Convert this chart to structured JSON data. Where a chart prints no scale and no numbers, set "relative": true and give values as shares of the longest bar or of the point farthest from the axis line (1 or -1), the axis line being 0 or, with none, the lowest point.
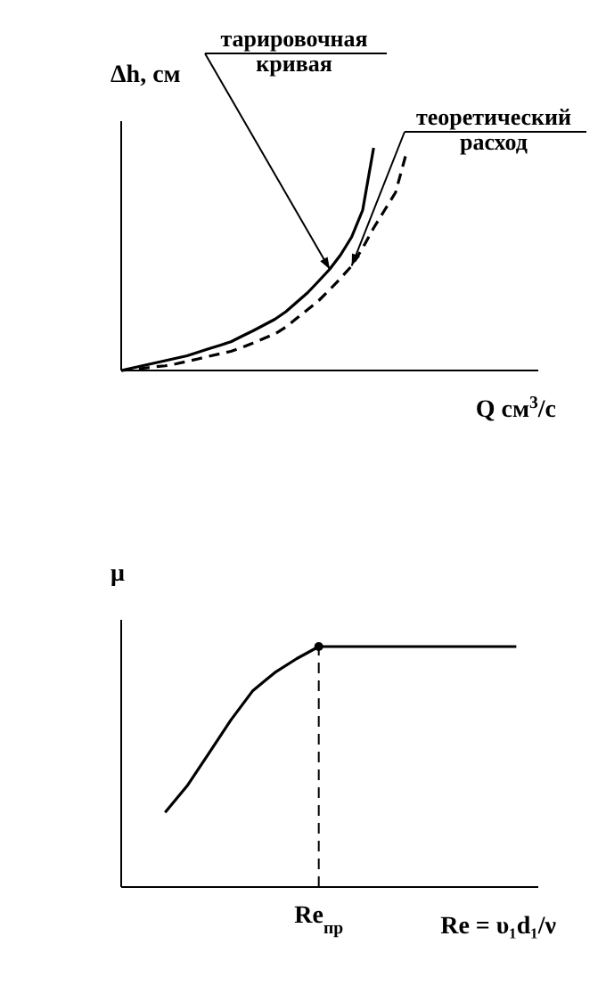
{
  "chart_data": [
    {
      "type": "line",
      "relative": true,
      "xlabel": "Q см$^{3}$/с",
      "ylabel": "Δh, см",
      "marker": "none",
      "categories": [
        null,
        null,
        null,
        null,
        null,
        null,
        null,
        null,
        null,
        null,
        null,
        null,
        null,
        null,
        null,
        null,
        null,
        null,
        null,
        null,
        null,
        null,
        null,
        null,
        null,
        null,
        null,
        null,
        null,
        null,
        null,
        null,
        null,
        null,
        null,
        null,
        null,
        null,
        null
      ],
      "series": [
        {
          "name": "тарировочная кривая",
          "color": "#000000",
          "line_style": "solid",
          "values": [
            0,
            0.011,
            0.022,
            0.033,
            0.044,
            0.055,
            0.066,
            0.082,
            0.098,
            0.113,
            0.129,
            0.154,
            0.178,
            0.204,
            0.23,
            0.264,
            0.307,
            0.35,
            0.402,
            0.455,
            0.52,
            0.6,
            0.72,
            1.0,
            null,
            null,
            null,
            null,
            null,
            null,
            null,
            null,
            null,
            null,
            null,
            null,
            null,
            null,
            null
          ]
        },
        {
          "name": "теоретический расход",
          "color": "#000000",
          "line_style": "dashed",
          "values": [
            0,
            0.005,
            0.01,
            0.016,
            0.021,
            0.03,
            0.041,
            0.052,
            0.064,
            0.075,
            0.086,
            0.103,
            0.123,
            0.144,
            0.164,
            0.195,
            0.235,
            0.274,
            0.314,
            0.363,
            0.415,
            0.47,
            0.55,
            0.64,
            0.72,
            0.8,
            0.98,
            null,
            null,
            null,
            null,
            null,
            null,
            null,
            null,
            null,
            null,
            null,
            null
          ]
        }
      ]
    },
    {
      "type": "line",
      "relative": true,
      "xlabel": "Re = υ₁d₁/ν",
      "ylabel": "μ",
      "marker": "none",
      "categories": [
        null,
        null,
        null,
        null,
        null,
        null,
        null,
        null,
        null,
        null,
        null,
        null,
        null,
        null,
        null,
        null,
        null,
        null,
        null,
        null
      ],
      "ref_lines": [
        {
          "axis": "x",
          "label": "Re$_{пр}$",
          "line_style": "dashed",
          "color": "#000000"
        }
      ],
      "series": [
        {
          "color": "#000000",
          "line_style": "solid",
          "values": [
            null,
            null,
            0.31,
            0.42,
            0.557,
            0.695,
            0.817,
            0.892,
            0.95,
            1.0,
            1.0,
            1.0,
            1.0,
            1.0,
            1.0,
            1.0,
            1.0,
            1.0,
            1.0,
            null
          ]
        }
      ]
    }
  ]
}
